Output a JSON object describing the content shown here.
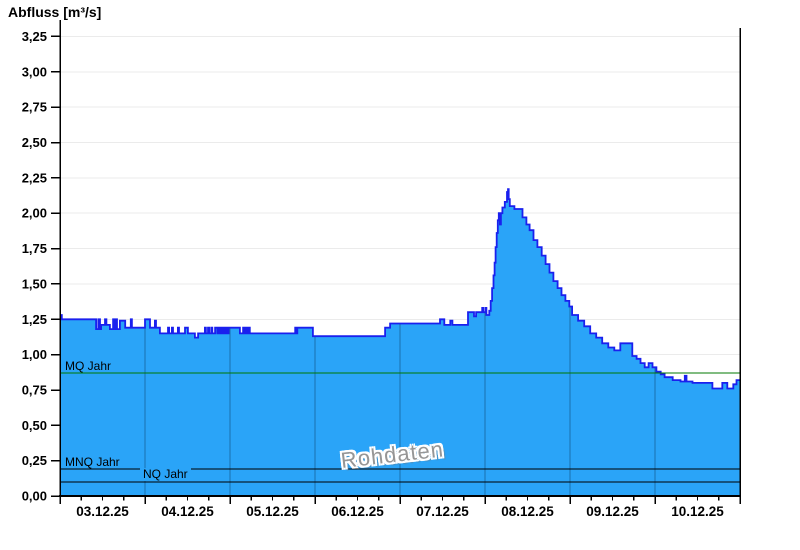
{
  "title": "Abfluss [m³/s]",
  "watermark": "Rohdaten",
  "colors": {
    "area_fill": "#2AA4F8",
    "area_outline": "#1A20EE",
    "grid": "#EBEBEB",
    "day_line": "#1A6FAE",
    "axis": "#000000",
    "mq_line": "#007800",
    "mnq_line": "#000000",
    "nq_line": "#000000",
    "watermark_text": "#969696"
  },
  "reference_lines": [
    {
      "id": "mq",
      "label": "MQ Jahr",
      "value": 0.87,
      "color": "#007800"
    },
    {
      "id": "mnq",
      "label": "MNQ Jahr",
      "value": 0.19,
      "color": "#000000"
    },
    {
      "id": "nq",
      "label": "NQ Jahr",
      "value": 0.1,
      "color": "#000000"
    }
  ],
  "chart_data": {
    "type": "area",
    "title": "Abfluss [m³/s]",
    "ylabel": "Abfluss [m³/s]",
    "xlabel": "",
    "ylim": [
      0,
      3.31
    ],
    "x_hours_range": [
      0,
      192
    ],
    "grid": "horizontal-light, vertical day lines clipped to area",
    "legend_position": "none",
    "y_ticks": [
      {
        "value": 0.0,
        "label": "0,00"
      },
      {
        "value": 0.25,
        "label": "0,25"
      },
      {
        "value": 0.5,
        "label": "0,50"
      },
      {
        "value": 0.75,
        "label": "0,75"
      },
      {
        "value": 1.0,
        "label": "1,00"
      },
      {
        "value": 1.25,
        "label": "1,25"
      },
      {
        "value": 1.5,
        "label": "1,50"
      },
      {
        "value": 1.75,
        "label": "1,75"
      },
      {
        "value": 2.0,
        "label": "2,00"
      },
      {
        "value": 2.25,
        "label": "2,25"
      },
      {
        "value": 2.5,
        "label": "2,50"
      },
      {
        "value": 2.75,
        "label": "2,75"
      },
      {
        "value": 3.0,
        "label": "3,00"
      },
      {
        "value": 3.25,
        "label": "3,25"
      }
    ],
    "categories": [
      "03.12.25",
      "04.12.25",
      "05.12.25",
      "06.12.25",
      "07.12.25",
      "08.12.25",
      "09.12.25",
      "10.12.25"
    ],
    "minor_tick_hours": 6,
    "series": [
      {
        "name": "Abfluss Rohdaten",
        "step": true,
        "unit": "m³/s",
        "points": [
          [
            0,
            1.28
          ],
          [
            0.5,
            1.25
          ],
          [
            10.2,
            1.18
          ],
          [
            10.8,
            1.25
          ],
          [
            11.3,
            1.18
          ],
          [
            11.6,
            1.21
          ],
          [
            12.7,
            1.25
          ],
          [
            13.1,
            1.21
          ],
          [
            14.1,
            1.18
          ],
          [
            15.0,
            1.25
          ],
          [
            15.3,
            1.18
          ],
          [
            15.8,
            1.25
          ],
          [
            16.1,
            1.18
          ],
          [
            16.9,
            1.24
          ],
          [
            18.4,
            1.19
          ],
          [
            20.0,
            1.25
          ],
          [
            20.3,
            1.19
          ],
          [
            24.0,
            1.25
          ],
          [
            25.4,
            1.19
          ],
          [
            26.8,
            1.24
          ],
          [
            27.1,
            1.19
          ],
          [
            28.2,
            1.15
          ],
          [
            30.5,
            1.19
          ],
          [
            30.8,
            1.15
          ],
          [
            31.6,
            1.19
          ],
          [
            31.9,
            1.15
          ],
          [
            33.3,
            1.19
          ],
          [
            33.6,
            1.15
          ],
          [
            35.3,
            1.19
          ],
          [
            36.1,
            1.15
          ],
          [
            38.1,
            1.12
          ],
          [
            39.0,
            1.15
          ],
          [
            40.9,
            1.19
          ],
          [
            41.2,
            1.15
          ],
          [
            41.8,
            1.19
          ],
          [
            42.1,
            1.15
          ],
          [
            42.7,
            1.19
          ],
          [
            43.0,
            1.15
          ],
          [
            43.8,
            1.19
          ],
          [
            44.4,
            1.15
          ],
          [
            44.7,
            1.19
          ],
          [
            45.1,
            1.15
          ],
          [
            45.4,
            1.19
          ],
          [
            45.7,
            1.15
          ],
          [
            46.0,
            1.19
          ],
          [
            46.3,
            1.15
          ],
          [
            46.8,
            1.19
          ],
          [
            47.1,
            1.15
          ],
          [
            47.6,
            1.19
          ],
          [
            50.8,
            1.15
          ],
          [
            51.7,
            1.19
          ],
          [
            52.0,
            1.15
          ],
          [
            52.5,
            1.19
          ],
          [
            52.8,
            1.15
          ],
          [
            53.3,
            1.19
          ],
          [
            53.6,
            1.15
          ],
          [
            66.4,
            1.19
          ],
          [
            66.7,
            1.15
          ],
          [
            67.0,
            1.19
          ],
          [
            71.4,
            1.13
          ],
          [
            91.8,
            1.19
          ],
          [
            93.2,
            1.22
          ],
          [
            107.3,
            1.25
          ],
          [
            108.5,
            1.21
          ],
          [
            110.2,
            1.24
          ],
          [
            110.8,
            1.21
          ],
          [
            115.2,
            1.3
          ],
          [
            116.9,
            1.27
          ],
          [
            117.5,
            1.3
          ],
          [
            119.2,
            1.33
          ],
          [
            119.5,
            1.3
          ],
          [
            120.1,
            1.33
          ],
          [
            120.4,
            1.28
          ],
          [
            121.2,
            1.31
          ],
          [
            121.6,
            1.38
          ],
          [
            122.0,
            1.47
          ],
          [
            122.4,
            1.56
          ],
          [
            122.7,
            1.65
          ],
          [
            123.0,
            1.76
          ],
          [
            123.3,
            1.86
          ],
          [
            123.6,
            1.95
          ],
          [
            123.9,
            2.0
          ],
          [
            124.2,
            1.92
          ],
          [
            124.5,
            2.0
          ],
          [
            124.9,
            2.04
          ],
          [
            125.6,
            2.08
          ],
          [
            126.2,
            2.15
          ],
          [
            126.5,
            2.17
          ],
          [
            126.7,
            2.1
          ],
          [
            127.0,
            2.05
          ],
          [
            128.3,
            2.03
          ],
          [
            130.6,
            1.97
          ],
          [
            131.7,
            1.92
          ],
          [
            132.6,
            1.88
          ],
          [
            133.7,
            1.81
          ],
          [
            134.8,
            1.76
          ],
          [
            136.0,
            1.7
          ],
          [
            137.1,
            1.64
          ],
          [
            138.2,
            1.58
          ],
          [
            139.3,
            1.52
          ],
          [
            140.5,
            1.47
          ],
          [
            141.6,
            1.42
          ],
          [
            142.7,
            1.38
          ],
          [
            143.8,
            1.34
          ],
          [
            144.6,
            1.28
          ],
          [
            146.3,
            1.24
          ],
          [
            148.0,
            1.2
          ],
          [
            149.7,
            1.15
          ],
          [
            151.4,
            1.12
          ],
          [
            153.1,
            1.08
          ],
          [
            154.8,
            1.05
          ],
          [
            156.5,
            1.03
          ],
          [
            158.2,
            1.08
          ],
          [
            161.6,
            0.99
          ],
          [
            162.8,
            0.97
          ],
          [
            163.9,
            0.94
          ],
          [
            165.1,
            0.91
          ],
          [
            166.2,
            0.94
          ],
          [
            167.3,
            0.91
          ],
          [
            168.4,
            0.88
          ],
          [
            169.6,
            0.86
          ],
          [
            170.7,
            0.84
          ],
          [
            173.0,
            0.82
          ],
          [
            175.2,
            0.81
          ],
          [
            176.4,
            0.85
          ],
          [
            176.9,
            0.81
          ],
          [
            178.6,
            0.8
          ],
          [
            184.2,
            0.76
          ],
          [
            187.0,
            0.8
          ],
          [
            188.4,
            0.76
          ],
          [
            190.1,
            0.79
          ],
          [
            191.0,
            0.82
          ]
        ]
      }
    ]
  }
}
